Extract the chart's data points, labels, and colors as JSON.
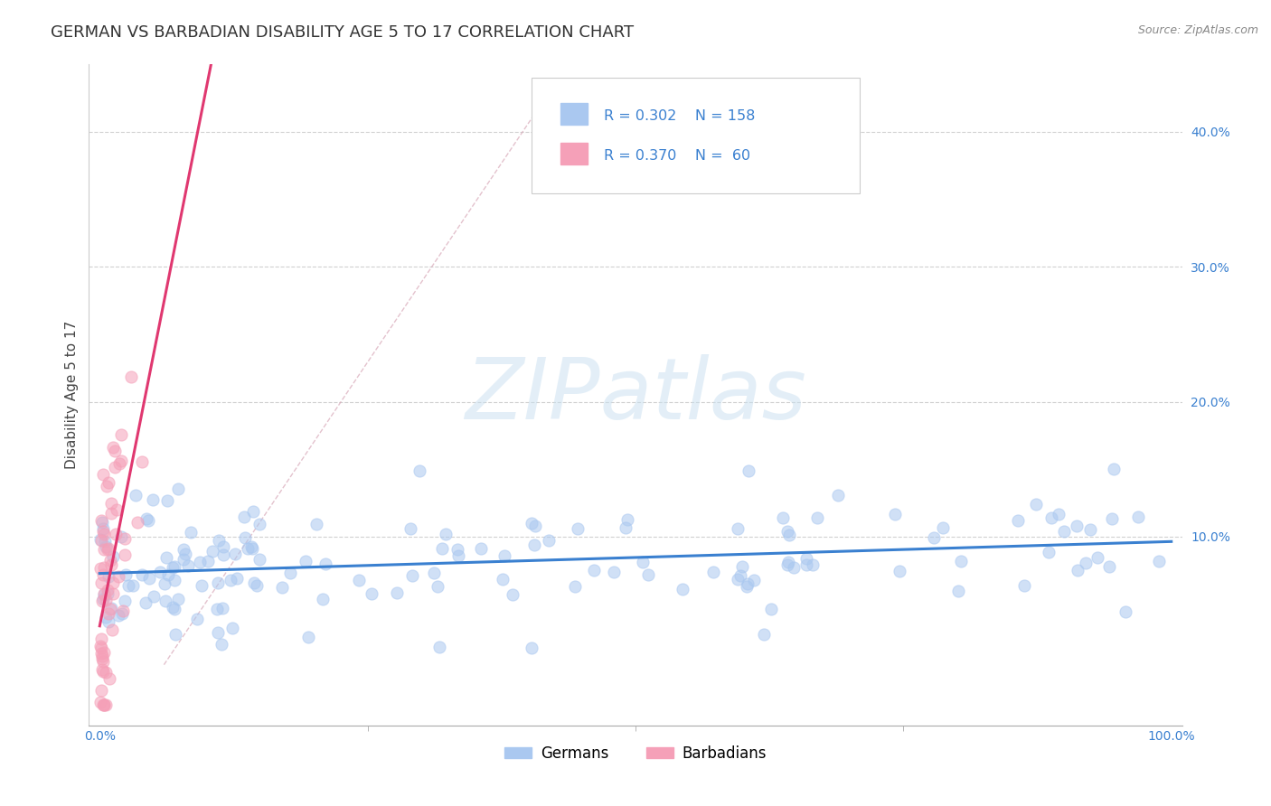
{
  "title": "GERMAN VS BARBADIAN DISABILITY AGE 5 TO 17 CORRELATION CHART",
  "source": "Source: ZipAtlas.com",
  "ylabel": "Disability Age 5 to 17",
  "xlim": [
    -0.01,
    1.01
  ],
  "ylim": [
    -0.04,
    0.45
  ],
  "yticks": [
    0.0,
    0.1,
    0.2,
    0.3,
    0.4
  ],
  "ytick_labels": [
    "",
    "10.0%",
    "20.0%",
    "30.0%",
    "40.0%"
  ],
  "xtick_labels": [
    "0.0%",
    "100.0%"
  ],
  "german_R": 0.302,
  "german_N": 158,
  "barbadian_R": 0.37,
  "barbadian_N": 60,
  "german_color": "#aac8f0",
  "barbadian_color": "#f5a0b8",
  "german_line_color": "#3a80d0",
  "barbadian_line_color": "#e03870",
  "identity_line_color": "#d8a8b8",
  "watermark_text": "ZIPatlas",
  "watermark_color": "#c8dff0",
  "title_fontsize": 13,
  "label_fontsize": 11,
  "tick_fontsize": 10,
  "legend_text_color": "#3a80d0",
  "legend_label_color": "#333333",
  "background_color": "#ffffff",
  "grid_color": "#cccccc",
  "seed_german": 12,
  "seed_barbadian": 99
}
